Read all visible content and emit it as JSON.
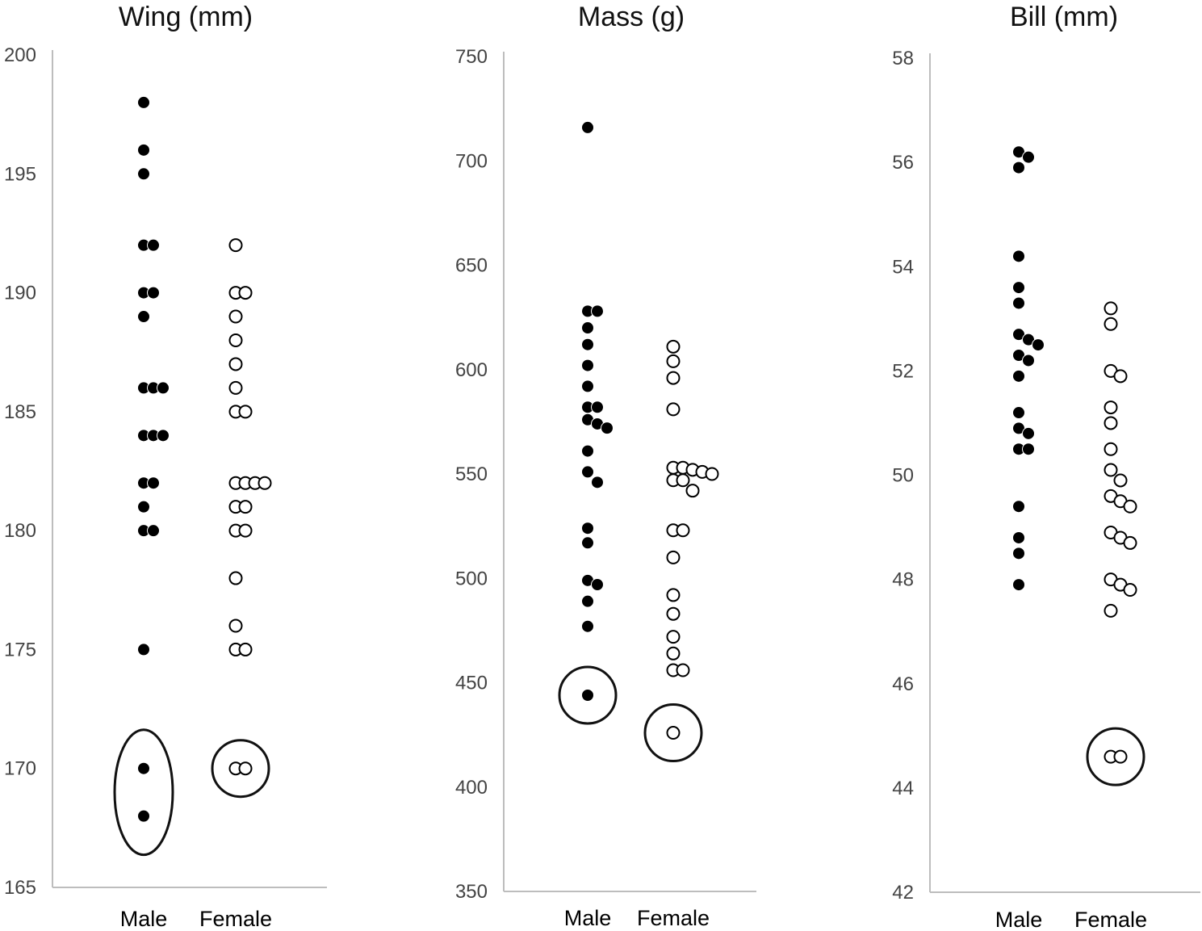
{
  "chart_data": [
    {
      "type": "scatter",
      "subtype": "dot-strip",
      "title": "Wing (mm)",
      "xlabel": "",
      "ylabel": "",
      "categories": [
        "Male",
        "Female"
      ],
      "ylim": [
        165,
        200
      ],
      "yticks": [
        165,
        170,
        175,
        180,
        185,
        190,
        195,
        200
      ],
      "series": [
        {
          "name": "Male",
          "marker": "filled",
          "values": [
            198,
            196,
            195,
            192,
            192,
            190,
            190,
            189,
            186,
            186,
            186,
            184,
            184,
            184,
            182,
            182,
            181,
            180,
            180,
            175,
            170,
            168
          ]
        },
        {
          "name": "Female",
          "marker": "open",
          "values": [
            192,
            190,
            190,
            189,
            188,
            187,
            186,
            185,
            185,
            182,
            182,
            182,
            182,
            181,
            181,
            180,
            180,
            178,
            176,
            175,
            175,
            170,
            170
          ]
        }
      ],
      "annotations": [
        {
          "category": "Male",
          "shape": "ellipse",
          "encloses": [
            170,
            168
          ]
        },
        {
          "category": "Female",
          "shape": "circle",
          "encloses": [
            170,
            170
          ]
        }
      ]
    },
    {
      "type": "scatter",
      "subtype": "dot-strip",
      "title": "Mass (g)",
      "xlabel": "",
      "ylabel": "",
      "categories": [
        "Male",
        "Female"
      ],
      "ylim": [
        350,
        750
      ],
      "yticks": [
        350,
        400,
        450,
        500,
        550,
        600,
        650,
        700,
        750
      ],
      "series": [
        {
          "name": "Male",
          "marker": "filled",
          "values": [
            716,
            628,
            628,
            620,
            612,
            602,
            592,
            582,
            582,
            576,
            574,
            572,
            561,
            551,
            546,
            524,
            517,
            499,
            497,
            489,
            477,
            444
          ]
        },
        {
          "name": "Female",
          "marker": "open",
          "values": [
            611,
            604,
            596,
            581,
            553,
            553,
            552,
            551,
            550,
            547,
            547,
            542,
            523,
            523,
            510,
            492,
            483,
            472,
            464,
            456,
            456,
            426
          ]
        }
      ],
      "annotations": [
        {
          "category": "Male",
          "shape": "circle",
          "encloses": [
            444
          ]
        },
        {
          "category": "Female",
          "shape": "circle",
          "encloses": [
            426
          ]
        }
      ]
    },
    {
      "type": "scatter",
      "subtype": "dot-strip",
      "title": "Bill (mm)",
      "xlabel": "",
      "ylabel": "",
      "categories": [
        "Male",
        "Female"
      ],
      "ylim": [
        42,
        58
      ],
      "yticks": [
        42,
        44,
        46,
        48,
        50,
        52,
        54,
        56,
        58
      ],
      "series": [
        {
          "name": "Male",
          "marker": "filled",
          "values": [
            56.2,
            56.1,
            55.9,
            54.2,
            53.6,
            53.3,
            52.7,
            52.6,
            52.5,
            52.3,
            52.2,
            51.9,
            51.2,
            50.9,
            50.8,
            50.5,
            50.5,
            49.4,
            48.8,
            48.5,
            47.9
          ]
        },
        {
          "name": "Female",
          "marker": "open",
          "values": [
            53.2,
            52.9,
            52.0,
            51.9,
            51.3,
            51.0,
            50.5,
            50.1,
            49.9,
            49.6,
            49.5,
            49.4,
            48.9,
            48.8,
            48.7,
            48.0,
            47.9,
            47.8,
            47.4,
            44.6,
            44.6
          ]
        }
      ],
      "annotations": [
        {
          "category": "Female",
          "shape": "circle",
          "encloses": [
            44.6,
            44.6
          ]
        }
      ]
    }
  ]
}
